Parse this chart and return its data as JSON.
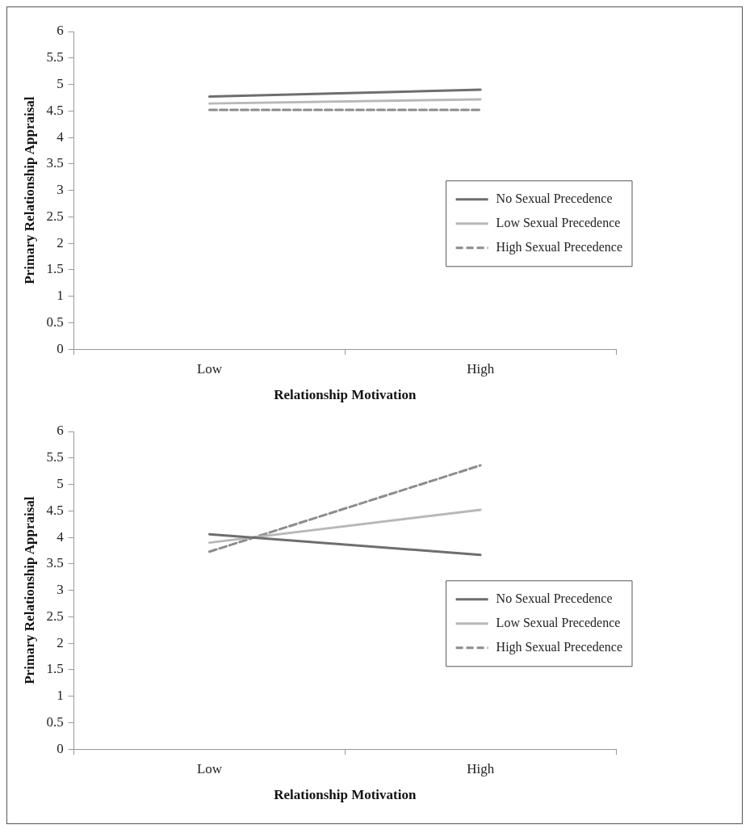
{
  "chart_data": [
    {
      "type": "line",
      "xlabel": "Relationship Motivation",
      "ylabel": "Primary Relationship Appraisal",
      "categories": [
        "Low",
        "High"
      ],
      "ylim": [
        0,
        6
      ],
      "yticks": [
        0,
        0.5,
        1,
        1.5,
        2,
        2.5,
        3,
        3.5,
        4,
        4.5,
        5,
        5.5,
        6
      ],
      "grid": false,
      "legend": "right",
      "marker": "none",
      "series": [
        {
          "name": "No Sexual Precedence",
          "color": "#6e6e6e",
          "values": [
            4.77,
            4.9
          ],
          "line_style": "solid"
        },
        {
          "name": "Low Sexual Precedence",
          "color": "#b8b8b8",
          "values": [
            4.64,
            4.72
          ],
          "line_style": "solid"
        },
        {
          "name": "High Sexual Precedence",
          "color": "#8c8c8c",
          "values": [
            4.52,
            4.52
          ],
          "line_style": "dashed"
        }
      ]
    },
    {
      "type": "line",
      "xlabel": "Relationship Motivation",
      "ylabel": "Primary Relationship Appraisal",
      "categories": [
        "Low",
        "High"
      ],
      "ylim": [
        0,
        6
      ],
      "yticks": [
        0,
        0.5,
        1,
        1.5,
        2,
        2.5,
        3,
        3.5,
        4,
        4.5,
        5,
        5.5,
        6
      ],
      "grid": false,
      "legend": "right",
      "marker": "none",
      "series": [
        {
          "name": "No Sexual Precedence",
          "color": "#6e6e6e",
          "values": [
            4.06,
            3.67
          ],
          "line_style": "solid"
        },
        {
          "name": "Low Sexual Precedence",
          "color": "#b8b8b8",
          "values": [
            3.9,
            4.52
          ],
          "line_style": "solid"
        },
        {
          "name": "High Sexual Precedence",
          "color": "#8c8c8c",
          "values": [
            3.73,
            5.36
          ],
          "line_style": "dashed"
        }
      ]
    }
  ]
}
